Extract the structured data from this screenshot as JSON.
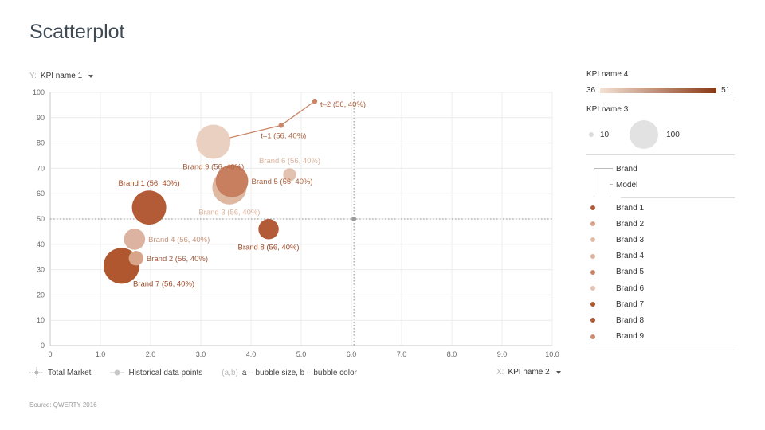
{
  "title": "Scatterplot",
  "y_select": {
    "prefix": "Y:",
    "value": "KPI name 1"
  },
  "x_select": {
    "prefix": "X:",
    "value": "KPI name 2"
  },
  "legend_bottom": {
    "total_market": "Total Market",
    "historical": "Historical data points",
    "note_key": "(a,b)",
    "note_text": "a – bubble size, b – bubble color"
  },
  "source": "Source: QWERTY 2016",
  "panel": {
    "color_title": "KPI name 4",
    "color_min": "36",
    "color_max": "51",
    "size_title": "KPI name 3",
    "size_min": "10",
    "size_max": "100",
    "level1": "Brand",
    "level2": "Model",
    "brands": [
      {
        "name": "Brand 1",
        "color": "#b35b36"
      },
      {
        "name": "Brand 2",
        "color": "#d8a58b"
      },
      {
        "name": "Brand 3",
        "color": "#e3bca8"
      },
      {
        "name": "Brand 4",
        "color": "#dcb3a0"
      },
      {
        "name": "Brand 5",
        "color": "#c9876a"
      },
      {
        "name": "Brand 6",
        "color": "#e4c2b0"
      },
      {
        "name": "Brand 7",
        "color": "#b0572f"
      },
      {
        "name": "Brand 8",
        "color": "#b35b36"
      },
      {
        "name": "Brand 9",
        "color": "#cd8e70"
      }
    ]
  },
  "chart_data": {
    "type": "scatter",
    "xlim": [
      0,
      10
    ],
    "ylim": [
      0,
      100
    ],
    "xticks": [
      "0",
      "1.0",
      "2.0",
      "3.0",
      "4.0",
      "5.0",
      "6.0",
      "7.0",
      "8.0",
      "9.0",
      "10.0"
    ],
    "yticks": [
      "0",
      "10",
      "20",
      "30",
      "40",
      "50",
      "60",
      "70",
      "80",
      "90",
      "100"
    ],
    "grid": true,
    "total_market": {
      "x": 6.05,
      "y": 50
    },
    "points": [
      {
        "name": "Brand 1",
        "label": "Brand 1 (56, 40%)",
        "x": 1.97,
        "y": 54.5,
        "size": 90,
        "color": "#b35b36",
        "label_pos": "above",
        "label_color": "#a54a24"
      },
      {
        "name": "Brand 2",
        "label": "Brand 2 (56, 40%)",
        "x": 1.71,
        "y": 34.5,
        "size": 10,
        "color": "#d8a58b",
        "label_pos": "right",
        "label_color": "#9c5a3c"
      },
      {
        "name": "Brand 3",
        "label": "Brand 3 (56, 40%)",
        "x": 3.57,
        "y": 62.5,
        "size": 90,
        "color": "#dfb8a2",
        "label_pos": "below",
        "label_color": "#dbb29c"
      },
      {
        "name": "Brand 4",
        "label": "Brand 4 (56, 40%)",
        "x": 1.68,
        "y": 42,
        "size": 28,
        "color": "#dcb3a0",
        "label_pos": "right",
        "label_color": "#c8957b"
      },
      {
        "name": "Brand 5",
        "label": "Brand 5 (56, 40%)",
        "x": 3.62,
        "y": 65,
        "size": 80,
        "color": "#c77f5f",
        "label_pos": "right",
        "label_color": "#a9623f"
      },
      {
        "name": "Brand 6",
        "label": "Brand 6 (56, 40%)",
        "x": 4.77,
        "y": 67.5,
        "size": 7,
        "color": "#e4c2b0",
        "label_pos": "above",
        "label_color": "#dbb29c"
      },
      {
        "name": "Brand 7",
        "label": "Brand 7 (56, 40%)",
        "x": 1.42,
        "y": 31.5,
        "size": 100,
        "color": "#b0572f",
        "label_pos": "below-right",
        "label_color": "#9c4a26"
      },
      {
        "name": "Brand 8",
        "label": "Brand 8 (56, 40%)",
        "x": 4.35,
        "y": 46,
        "size": 25,
        "color": "#b35b36",
        "label_pos": "below",
        "label_color": "#9c4a26"
      },
      {
        "name": "Brand 9",
        "label": "Brand 9 (56, 40%)",
        "x": 3.25,
        "y": 80.5,
        "size": 90,
        "color": "#ead0c1",
        "label_pos": "below",
        "label_color": "#a9623f"
      }
    ],
    "history": [
      {
        "label": "",
        "x": 3.25,
        "y": 80.5
      },
      {
        "label": "t–1 (56, 40%)",
        "x": 4.6,
        "y": 87
      },
      {
        "label": "t–2 (56, 40%)",
        "x": 5.27,
        "y": 96.5
      }
    ],
    "history_color": "#c9876a"
  }
}
